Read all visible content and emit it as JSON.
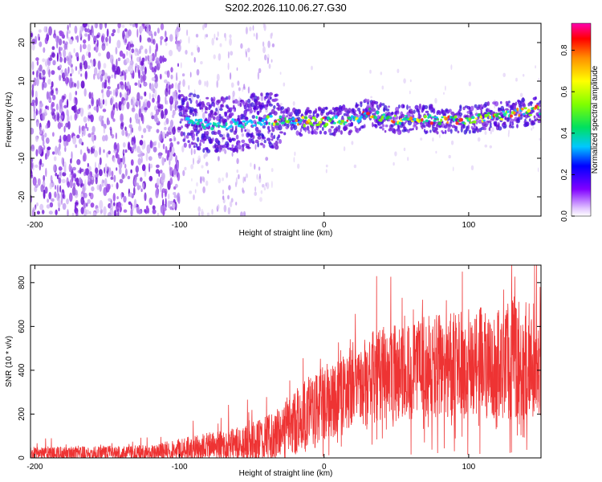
{
  "chart_data": [
    {
      "type": "heatmap",
      "title": "S202.2026.110.06.27.G30",
      "xlabel": "Height of straight line (km)",
      "ylabel": "Frequency (Hz)",
      "xlim": [
        -203,
        150
      ],
      "ylim": [
        -25,
        25
      ],
      "xticks": [
        -200,
        -100,
        0,
        100
      ],
      "xtick_labels": [
        "-200",
        "-100",
        "0",
        "100"
      ],
      "yticks": [
        -20,
        -10,
        0,
        10,
        20
      ],
      "ytick_labels": [
        "-20",
        "-10",
        "0",
        "10",
        "20"
      ],
      "ridge": {
        "description": "coherent signal band centered near 0 Hz, strongest for heights above -40 km",
        "start_km": -100,
        "end_km": 150,
        "center_freq_hz": [
          {
            "x": -100,
            "f": 0.5
          },
          {
            "x": -80,
            "f": -1.5
          },
          {
            "x": -60,
            "f": -1
          },
          {
            "x": -40,
            "f": 0
          },
          {
            "x": -20,
            "f": -0.5
          },
          {
            "x": 0,
            "f": -0.5
          },
          {
            "x": 20,
            "f": 0
          },
          {
            "x": 30,
            "f": 2
          },
          {
            "x": 45,
            "f": 0
          },
          {
            "x": 60,
            "f": 0
          },
          {
            "x": 80,
            "f": 0
          },
          {
            "x": 100,
            "f": 0
          },
          {
            "x": 120,
            "f": 1
          },
          {
            "x": 150,
            "f": 2.5
          }
        ]
      },
      "colorbar": {
        "label": "Normalized spectral amplitude",
        "range": [
          0,
          0.93
        ],
        "ticks": [
          0.0,
          0.2,
          0.4,
          0.6,
          0.8
        ],
        "tick_labels": [
          "0.0",
          "0.2",
          "0.4",
          "0.6",
          "0.8"
        ]
      }
    },
    {
      "type": "line",
      "xlabel": "Height of straight line (km)",
      "ylabel": "SNR (10 * v/v)",
      "xlim": [
        -203,
        150
      ],
      "ylim": [
        0,
        880
      ],
      "xticks": [
        -200,
        -100,
        0,
        100
      ],
      "xtick_labels": [
        "-200",
        "-100",
        "0",
        "100"
      ],
      "yticks": [
        0,
        200,
        400,
        600,
        800
      ],
      "ytick_labels": [
        "0",
        "200",
        "400",
        "600",
        "800"
      ],
      "color": "#ee3333",
      "series": [
        {
          "name": "SNR",
          "envelope": [
            {
              "x": -203,
              "base": 20,
              "spread": 30
            },
            {
              "x": -120,
              "base": 25,
              "spread": 35
            },
            {
              "x": -100,
              "base": 40,
              "spread": 50
            },
            {
              "x": -60,
              "base": 60,
              "spread": 80
            },
            {
              "x": -40,
              "base": 80,
              "spread": 110
            },
            {
              "x": -20,
              "base": 160,
              "spread": 150
            },
            {
              "x": 0,
              "base": 260,
              "spread": 180
            },
            {
              "x": 20,
              "base": 330,
              "spread": 200
            },
            {
              "x": 40,
              "base": 380,
              "spread": 220
            },
            {
              "x": 80,
              "base": 420,
              "spread": 240
            },
            {
              "x": 120,
              "base": 440,
              "spread": 260
            },
            {
              "x": 150,
              "base": 460,
              "spread": 280
            }
          ]
        }
      ]
    }
  ],
  "colors": {
    "line": "#ee3333",
    "scatter_light": "#dcc8f5",
    "scatter_mid": "#9a4ae6",
    "scatter_dark": "#6a10d0"
  }
}
